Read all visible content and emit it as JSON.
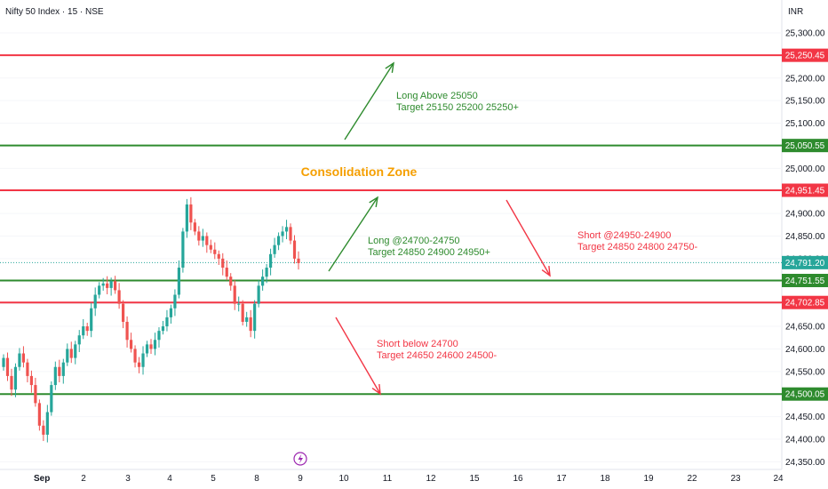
{
  "header": {
    "symbol": "Nifty 50 Index · 15 · NSE",
    "currency": "INR"
  },
  "chart_data": {
    "type": "candlestick",
    "y_ticks": [
      "25,300.00",
      "25,250.00",
      "25,200.00",
      "25,150.00",
      "25,100.00",
      "25,050.00",
      "25,000.00",
      "24,950.00",
      "24,900.00",
      "24,850.00",
      "24,800.00",
      "24,750.00",
      "24,700.00",
      "24,650.00",
      "24,600.00",
      "24,550.00",
      "24,500.00",
      "24,450.00",
      "24,400.00",
      "24,350.00"
    ],
    "x_ticks": [
      "Sep",
      "2",
      "3",
      "4",
      "5",
      "8",
      "9",
      "10",
      "11",
      "12",
      "15",
      "16",
      "17",
      "18",
      "19",
      "22",
      "23",
      "24"
    ],
    "ylim": [
      24335,
      25320
    ],
    "levels": [
      {
        "value": 25250.45,
        "label": "25,250.45",
        "color": "#f23645"
      },
      {
        "value": 25050.55,
        "label": "25,050.55",
        "color": "#2e8b2e"
      },
      {
        "value": 24951.45,
        "label": "24,951.45",
        "color": "#f23645"
      },
      {
        "value": 24751.55,
        "label": "24,751.55",
        "color": "#2e8b2e"
      },
      {
        "value": 24702.85,
        "label": "24,702.85",
        "color": "#f23645"
      },
      {
        "value": 24500.05,
        "label": "24,500.05",
        "color": "#2e8b2e"
      }
    ],
    "last_price": {
      "value": 24791.2,
      "label": "24,791.20",
      "color": "#26a69a"
    },
    "closes": [
      24580,
      24540,
      24510,
      24560,
      24590,
      24570,
      24540,
      24520,
      24480,
      24430,
      24410,
      24460,
      24520,
      24560,
      24540,
      24570,
      24600,
      24580,
      24610,
      24630,
      24650,
      24640,
      24690,
      24720,
      24740,
      24745,
      24735,
      24750,
      24730,
      24700,
      24660,
      24620,
      24600,
      24570,
      24560,
      24590,
      24610,
      24600,
      24620,
      24640,
      24650,
      24670,
      24690,
      24720,
      24780,
      24860,
      24920,
      24880,
      24860,
      24840,
      24850,
      24830,
      24820,
      24810,
      24800,
      24780,
      24760,
      24740,
      24700,
      24700,
      24660,
      24670,
      24640,
      24700,
      24740,
      24760,
      24780,
      24810,
      24830,
      24850,
      24860,
      24870,
      24840,
      24800,
      24790
    ],
    "annotations": [
      {
        "text": "Long Above 25050",
        "color": "#2e8b2e"
      },
      {
        "text": "Target 25150 25200 25250+",
        "color": "#2e8b2e"
      },
      {
        "text": "Consolidation Zone",
        "color": "#f59f00"
      },
      {
        "text": "Long @24700-24750",
        "color": "#2e8b2e"
      },
      {
        "text": "Target 24850 24900 24950+",
        "color": "#2e8b2e"
      },
      {
        "text": "Short @24950-24900",
        "color": "#f23645"
      },
      {
        "text": "Target 24850 24800 24750-",
        "color": "#f23645"
      },
      {
        "text": "Short below 24700",
        "color": "#f23645"
      },
      {
        "text": "Target 24650 24600 24500-",
        "color": "#f23645"
      }
    ],
    "colors": {
      "up": "#26a69a",
      "down": "#ef5350",
      "axis_text": "#131722",
      "grid": "#f0f3fa"
    }
  }
}
